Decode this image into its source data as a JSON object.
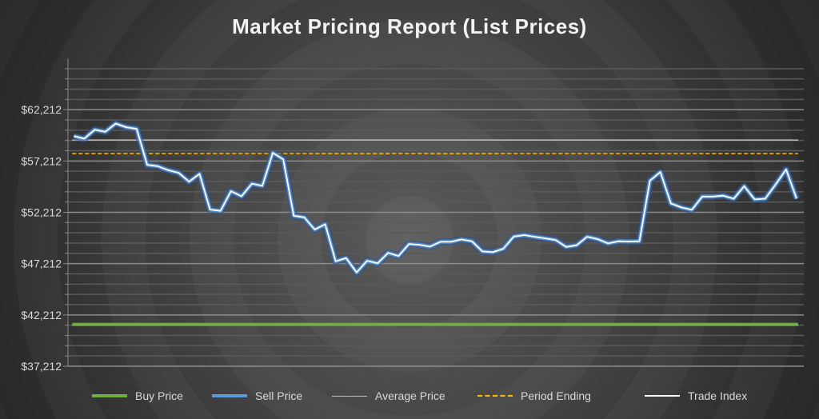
{
  "chart_data": {
    "type": "line",
    "title": "Market Pricing Report (List Prices)",
    "xlabel": "",
    "ylabel": "",
    "ylim": [
      37212,
      67212
    ],
    "yticks": [
      "$37,212",
      "$42,212",
      "$47,212",
      "$52,212",
      "$57,212",
      "$62,212"
    ],
    "ytick_values": [
      37212,
      42212,
      47212,
      52212,
      57212,
      62212
    ],
    "minor_grid_step": 1000,
    "grid": true,
    "legend_position": "bottom",
    "series": [
      {
        "name": "Buy Price",
        "color": "#70ad47",
        "constant": 41280
      },
      {
        "name": "Sell Price",
        "color": "#5b9bd5",
        "values": [
          59640,
          59385,
          60265,
          60055,
          60860,
          60500,
          60340,
          56840,
          56710,
          56320,
          56060,
          55200,
          55960,
          52480,
          52350,
          54270,
          53780,
          55000,
          54790,
          58010,
          57360,
          51880,
          51720,
          50530,
          51050,
          47440,
          47750,
          46350,
          47490,
          47240,
          48250,
          47960,
          49130,
          49050,
          48870,
          49340,
          49340,
          49570,
          49390,
          48400,
          48320,
          48660,
          49850,
          49990,
          49830,
          49670,
          49510,
          48840,
          49000,
          49830,
          49600,
          49180,
          49390,
          49370,
          49390,
          55300,
          56140,
          53080,
          52690,
          52450,
          53750,
          53750,
          53830,
          53540,
          54760,
          53470,
          53540,
          54920,
          56390,
          53540
        ]
      },
      {
        "name": "Average Price",
        "color": "#bfbfbf",
        "constant": 59250
      },
      {
        "name": "Period Ending",
        "color": "#ffc000",
        "constant": 57930,
        "dashed": true
      },
      {
        "name": "Trade Index",
        "color": "#ffffff"
      }
    ]
  }
}
